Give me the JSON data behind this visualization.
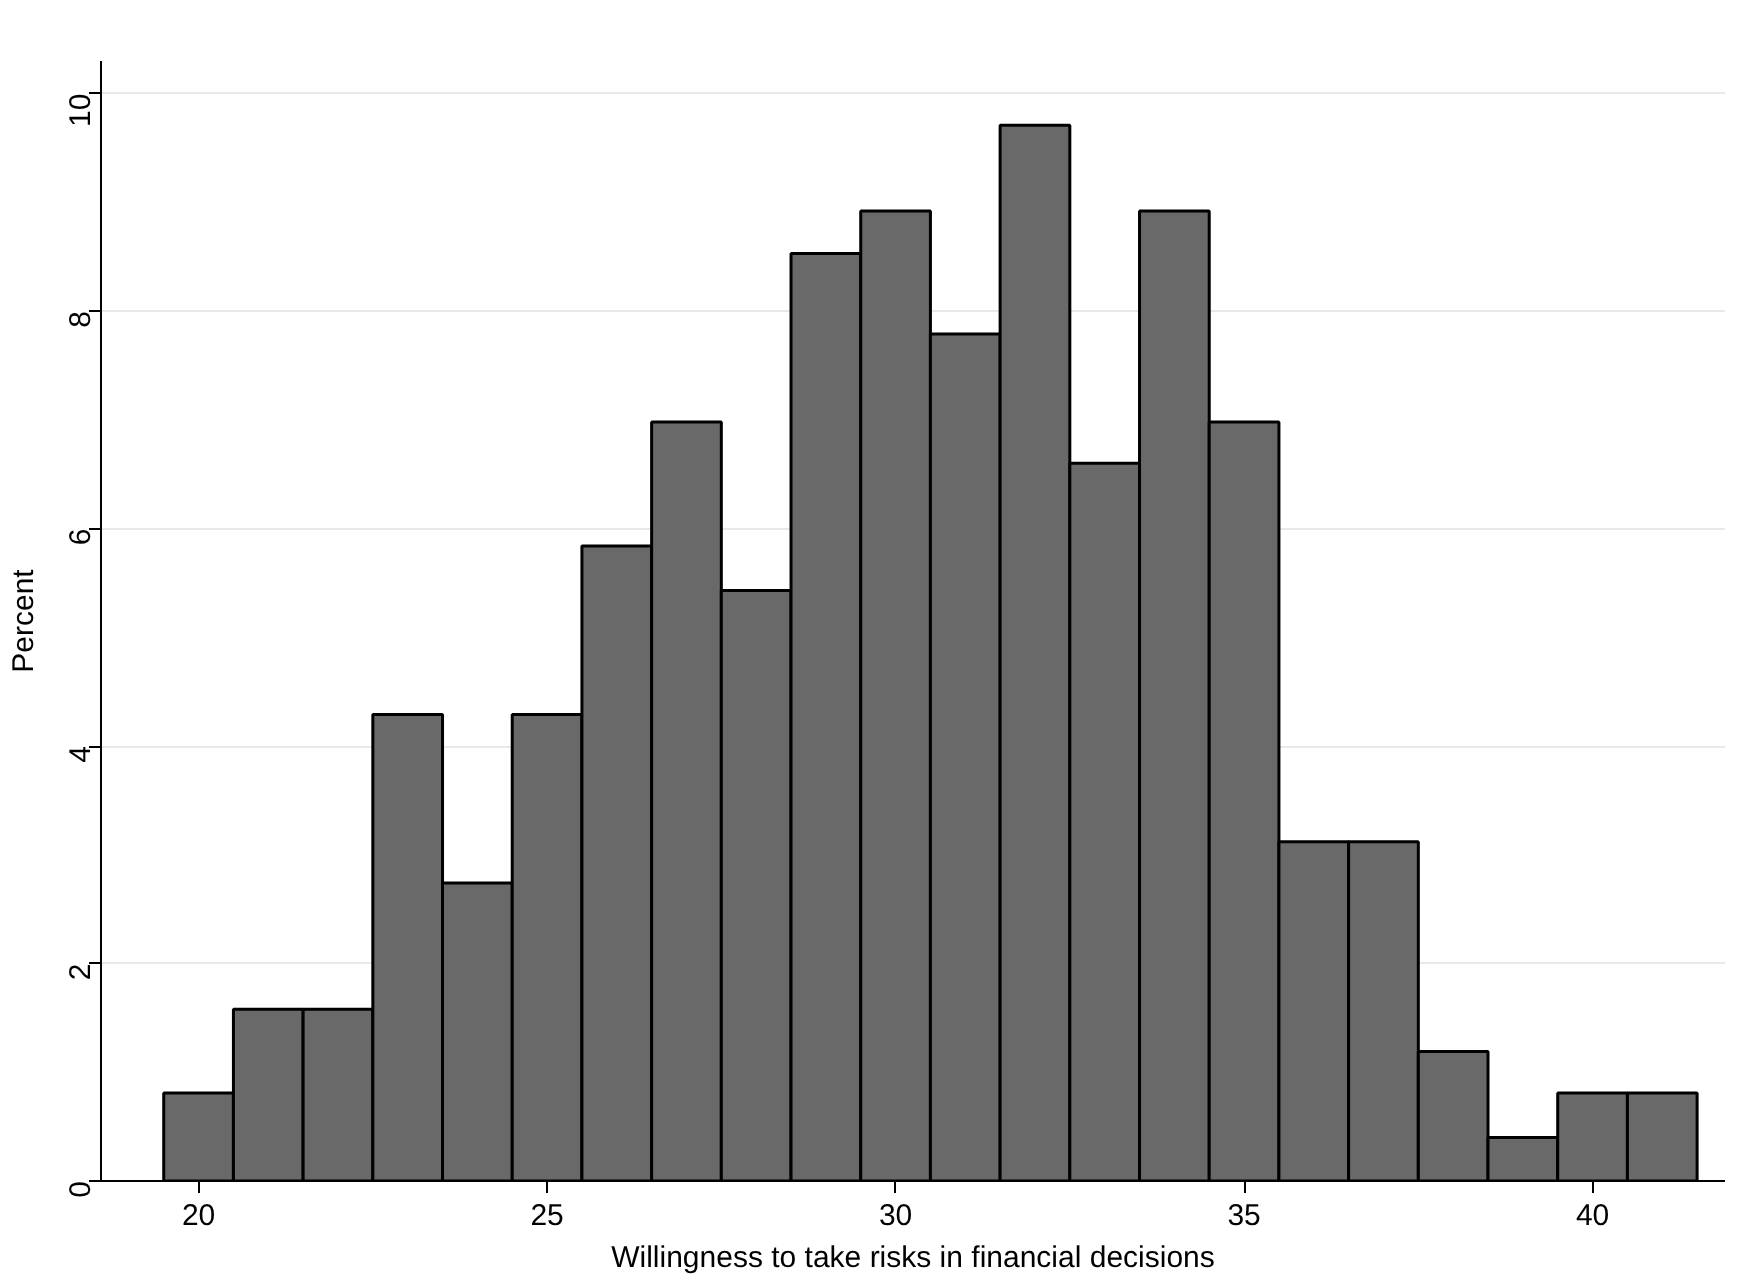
{
  "chart_data": {
    "type": "histogram",
    "xlabel": "Willingness to take risks in financial decisions",
    "ylabel": "Percent",
    "bins": [
      19.5,
      20.5,
      21.5,
      22.5,
      23.5,
      24.5,
      25.5,
      26.5,
      27.5,
      28.5,
      29.5,
      30.5,
      31.5,
      32.5,
      33.5,
      34.5,
      35.5,
      36.5,
      37.5,
      38.5,
      39.5,
      40.5,
      41.5
    ],
    "values": [
      0.81,
      1.58,
      1.58,
      4.29,
      2.74,
      4.29,
      5.84,
      6.98,
      5.43,
      8.53,
      8.92,
      7.79,
      9.71,
      6.6,
      8.92,
      6.98,
      3.12,
      3.12,
      1.19,
      0.4,
      0.81,
      0.81
    ],
    "color": "#696969",
    "xlim": [
      18.6,
      41.9
    ],
    "ylim": [
      0,
      10.3
    ],
    "xticks": [
      20,
      25,
      30,
      35,
      40
    ],
    "yticks": [
      0,
      2,
      4,
      6,
      8,
      10
    ],
    "grid": "y"
  }
}
